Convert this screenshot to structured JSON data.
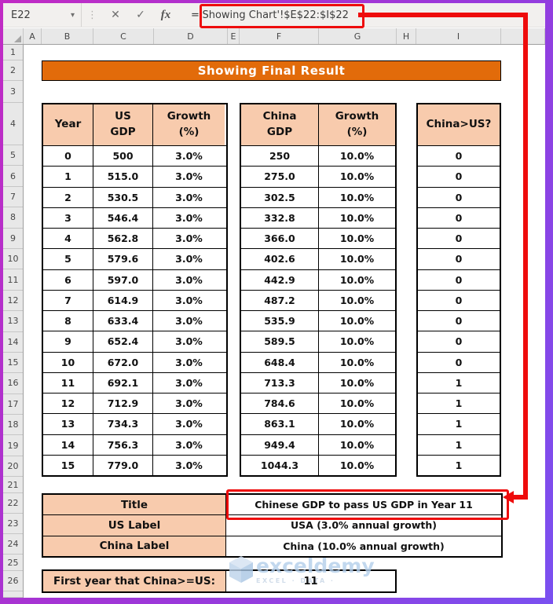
{
  "formula_bar": {
    "name_box": "E22",
    "dropdown_icon": "▾",
    "dots_icon": "⋮",
    "cancel_icon": "✕",
    "enter_icon": "✓",
    "fx_icon": "fx",
    "formula": "='Showing Chart'!$E$22:$I$22"
  },
  "grid": {
    "column_letters": [
      "A",
      "B",
      "C",
      "D",
      "E",
      "F",
      "G",
      "H",
      "I"
    ],
    "row_numbers": [
      "1",
      "2",
      "3",
      "4",
      "5",
      "6",
      "7",
      "8",
      "9",
      "10",
      "11",
      "12",
      "13",
      "14",
      "15",
      "16",
      "17",
      "18",
      "19",
      "20",
      "21",
      "22",
      "23",
      "24",
      "25",
      "26"
    ]
  },
  "banner": {
    "title": "Showing Final Result"
  },
  "us_table": {
    "header_year": "Year",
    "header_gdp_line1": "US",
    "header_gdp_line2": "GDP",
    "header_growth_line1": "Growth",
    "header_growth_line2": "(%)",
    "rows": [
      {
        "year": "0",
        "gdp": "500",
        "growth": "3.0%"
      },
      {
        "year": "1",
        "gdp": "515.0",
        "growth": "3.0%"
      },
      {
        "year": "2",
        "gdp": "530.5",
        "growth": "3.0%"
      },
      {
        "year": "3",
        "gdp": "546.4",
        "growth": "3.0%"
      },
      {
        "year": "4",
        "gdp": "562.8",
        "growth": "3.0%"
      },
      {
        "year": "5",
        "gdp": "579.6",
        "growth": "3.0%"
      },
      {
        "year": "6",
        "gdp": "597.0",
        "growth": "3.0%"
      },
      {
        "year": "7",
        "gdp": "614.9",
        "growth": "3.0%"
      },
      {
        "year": "8",
        "gdp": "633.4",
        "growth": "3.0%"
      },
      {
        "year": "9",
        "gdp": "652.4",
        "growth": "3.0%"
      },
      {
        "year": "10",
        "gdp": "672.0",
        "growth": "3.0%"
      },
      {
        "year": "11",
        "gdp": "692.1",
        "growth": "3.0%"
      },
      {
        "year": "12",
        "gdp": "712.9",
        "growth": "3.0%"
      },
      {
        "year": "13",
        "gdp": "734.3",
        "growth": "3.0%"
      },
      {
        "year": "14",
        "gdp": "756.3",
        "growth": "3.0%"
      },
      {
        "year": "15",
        "gdp": "779.0",
        "growth": "3.0%"
      }
    ]
  },
  "china_table": {
    "header_gdp_line1": "China",
    "header_gdp_line2": "GDP",
    "header_growth_line1": "Growth",
    "header_growth_line2": "(%)",
    "rows": [
      {
        "gdp": "250",
        "growth": "10.0%"
      },
      {
        "gdp": "275.0",
        "growth": "10.0%"
      },
      {
        "gdp": "302.5",
        "growth": "10.0%"
      },
      {
        "gdp": "332.8",
        "growth": "10.0%"
      },
      {
        "gdp": "366.0",
        "growth": "10.0%"
      },
      {
        "gdp": "402.6",
        "growth": "10.0%"
      },
      {
        "gdp": "442.9",
        "growth": "10.0%"
      },
      {
        "gdp": "487.2",
        "growth": "10.0%"
      },
      {
        "gdp": "535.9",
        "growth": "10.0%"
      },
      {
        "gdp": "589.5",
        "growth": "10.0%"
      },
      {
        "gdp": "648.4",
        "growth": "10.0%"
      },
      {
        "gdp": "713.3",
        "growth": "10.0%"
      },
      {
        "gdp": "784.6",
        "growth": "10.0%"
      },
      {
        "gdp": "863.1",
        "growth": "10.0%"
      },
      {
        "gdp": "949.4",
        "growth": "10.0%"
      },
      {
        "gdp": "1044.3",
        "growth": "10.0%"
      }
    ]
  },
  "compare_table": {
    "header": "China>US?",
    "values": [
      "0",
      "0",
      "0",
      "0",
      "0",
      "0",
      "0",
      "0",
      "0",
      "0",
      "0",
      "1",
      "1",
      "1",
      "1",
      "1"
    ]
  },
  "summary": {
    "rows": [
      {
        "label": "Title",
        "value": "Chinese GDP to pass US GDP in Year 11"
      },
      {
        "label": "US Label",
        "value": "USA (3.0% annual growth)"
      },
      {
        "label": "China Label",
        "value": "China (10.0% annual growth)"
      }
    ]
  },
  "first_year": {
    "label": "First year that China>=US:",
    "value": "11"
  },
  "watermark": {
    "brand": "exceldemy",
    "tagline": "EXCEL · DATA ·"
  },
  "colors": {
    "banner_bg": "#e26b0a",
    "header_cell_bg": "#f8cbad",
    "annotation_red": "#ee0c0c",
    "frame_magenta": "#c12bc4",
    "frame_violet": "#7a50f0",
    "watermark_blue": "#b3cfeb"
  }
}
